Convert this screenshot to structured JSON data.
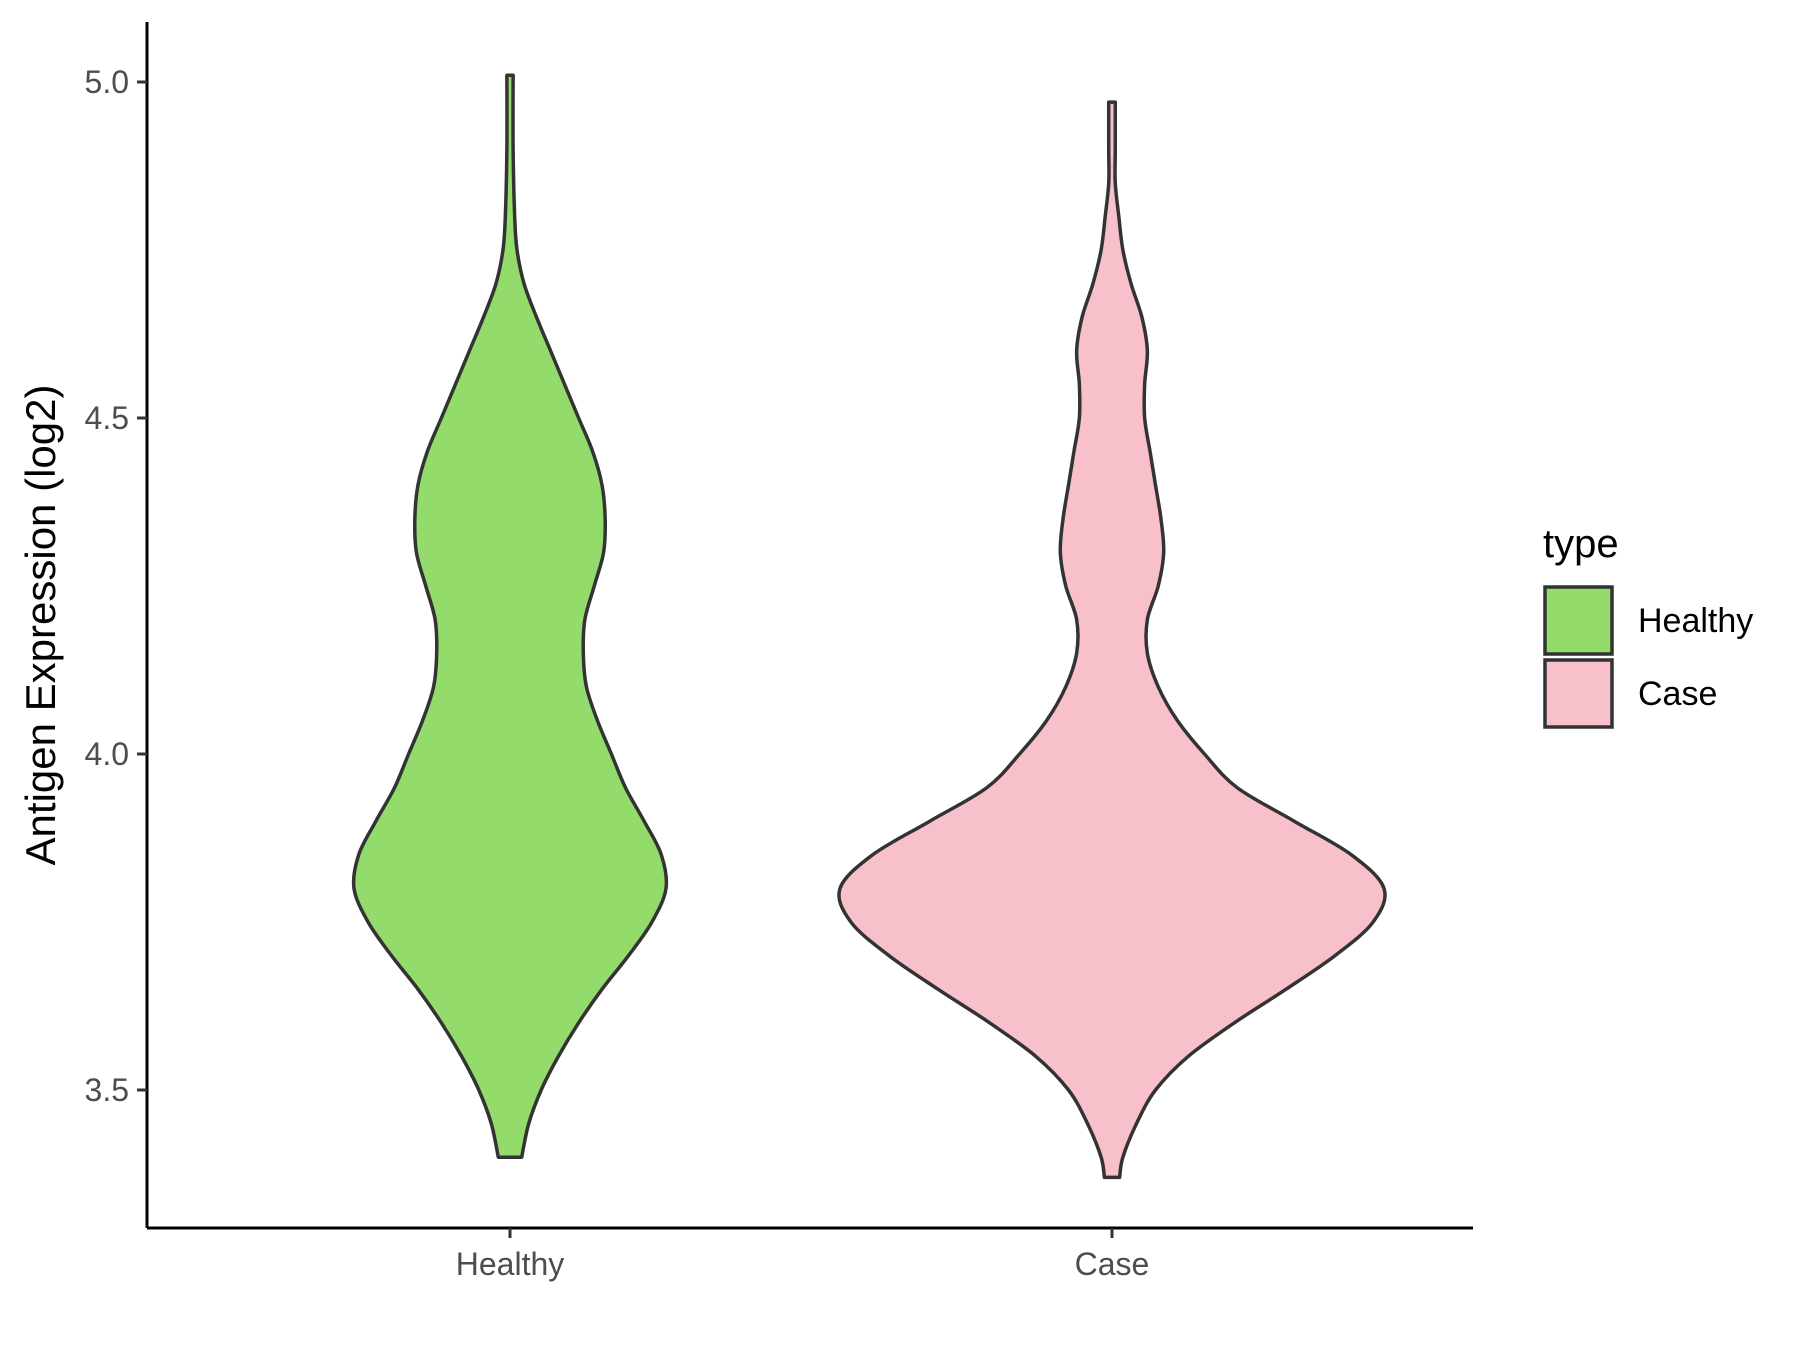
{
  "chart_data": {
    "type": "violin",
    "ylabel": "Antigen Expression (log2)",
    "xlabel": "",
    "title": "",
    "ylim": [
      3.3,
      5.09
    ],
    "yticks": [
      "3.5",
      "4.0",
      "4.5",
      "5.0"
    ],
    "categories": [
      "Healthy",
      "Case"
    ],
    "legend": {
      "title": "type",
      "position": "right",
      "entries": [
        {
          "label": "Healthy",
          "color": "#93dc6b"
        },
        {
          "label": "Case",
          "color": "#f8c0cb"
        }
      ]
    },
    "series": [
      {
        "category": "Healthy",
        "color": "#93dc6b",
        "min": 3.4,
        "max": 5.01,
        "density_profile": [
          [
            3.4,
            0.075
          ],
          [
            3.45,
            0.12
          ],
          [
            3.5,
            0.2
          ],
          [
            3.55,
            0.31
          ],
          [
            3.6,
            0.44
          ],
          [
            3.65,
            0.59
          ],
          [
            3.7,
            0.76
          ],
          [
            3.75,
            0.91
          ],
          [
            3.8,
            1.0
          ],
          [
            3.85,
            0.97
          ],
          [
            3.9,
            0.86
          ],
          [
            3.95,
            0.74
          ],
          [
            4.0,
            0.65
          ],
          [
            4.05,
            0.56
          ],
          [
            4.1,
            0.49
          ],
          [
            4.15,
            0.47
          ],
          [
            4.2,
            0.48
          ],
          [
            4.25,
            0.54
          ],
          [
            4.3,
            0.6
          ],
          [
            4.35,
            0.61
          ],
          [
            4.4,
            0.59
          ],
          [
            4.45,
            0.53
          ],
          [
            4.5,
            0.44
          ],
          [
            4.55,
            0.35
          ],
          [
            4.6,
            0.26
          ],
          [
            4.65,
            0.17
          ],
          [
            4.7,
            0.09
          ],
          [
            4.75,
            0.045
          ],
          [
            4.8,
            0.03
          ],
          [
            4.9,
            0.02
          ],
          [
            5.01,
            0.02
          ]
        ]
      },
      {
        "category": "Case",
        "color": "#f8c0cb",
        "min": 3.37,
        "max": 4.97,
        "density_profile": [
          [
            3.37,
            0.028
          ],
          [
            3.4,
            0.04
          ],
          [
            3.45,
            0.09
          ],
          [
            3.5,
            0.16
          ],
          [
            3.55,
            0.28
          ],
          [
            3.6,
            0.45
          ],
          [
            3.65,
            0.64
          ],
          [
            3.7,
            0.82
          ],
          [
            3.75,
            0.96
          ],
          [
            3.8,
            1.0
          ],
          [
            3.85,
            0.88
          ],
          [
            3.9,
            0.67
          ],
          [
            3.95,
            0.46
          ],
          [
            4.0,
            0.34
          ],
          [
            4.05,
            0.24
          ],
          [
            4.1,
            0.17
          ],
          [
            4.15,
            0.13
          ],
          [
            4.2,
            0.13
          ],
          [
            4.25,
            0.17
          ],
          [
            4.3,
            0.19
          ],
          [
            4.35,
            0.18
          ],
          [
            4.4,
            0.16
          ],
          [
            4.45,
            0.14
          ],
          [
            4.5,
            0.12
          ],
          [
            4.55,
            0.12
          ],
          [
            4.6,
            0.13
          ],
          [
            4.65,
            0.11
          ],
          [
            4.7,
            0.07
          ],
          [
            4.75,
            0.04
          ],
          [
            4.8,
            0.025
          ],
          [
            4.85,
            0.012
          ],
          [
            4.9,
            0.012
          ],
          [
            4.97,
            0.012
          ]
        ]
      }
    ]
  }
}
